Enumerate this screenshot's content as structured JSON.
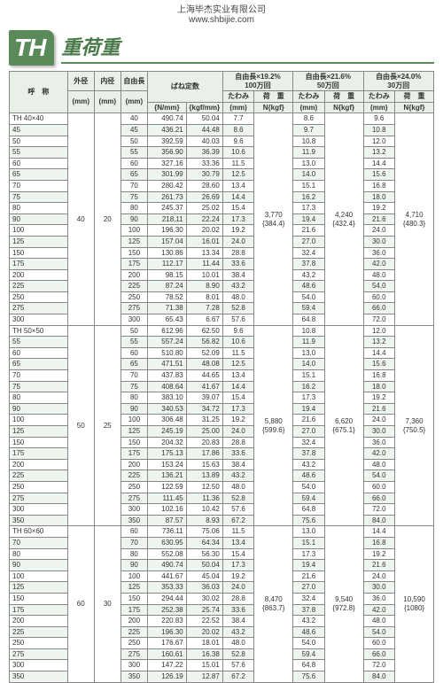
{
  "header": {
    "company": "上海毕杰实业有限公司",
    "url": "www.shbijie.com"
  },
  "title": {
    "logo": "TH",
    "text": "重荷重"
  },
  "columns": {
    "name": "呼　称",
    "od": "外径",
    "id": "内径",
    "len": "自由長",
    "mm": "(mm)",
    "spring": "ばね定数",
    "sc1": "{N/mm}",
    "sc2": "{kgf/mm}",
    "g1": "自由長×19.2%<br>100万回",
    "g2": "自由長×21.6%<br>50万回",
    "g3": "自由長×24.0%<br>30万回",
    "deflection": "たわみ",
    "load": "荷　重",
    "defl_u": "(mm)",
    "load_u": "N{kgf}"
  },
  "zebra_color": "#eef4ee",
  "groups": [
    {
      "name": "TH 40×40",
      "od": "40",
      "id": "20",
      "load1": "3,770<br>{384.4}",
      "load2": "4,240<br>{432.4}",
      "load3": "4,710<br>{480.3}",
      "rows": [
        [
          "40",
          "40",
          "490.74",
          "50.04",
          "7.7",
          "8.6",
          "9.6"
        ],
        [
          "45",
          "45",
          "436.21",
          "44.48",
          "8.6",
          "9.7",
          "10.8"
        ],
        [
          "50",
          "50",
          "392.59",
          "40.03",
          "9.6",
          "10.8",
          "12.0"
        ],
        [
          "55",
          "55",
          "356.90",
          "36.39",
          "10.6",
          "11.9",
          "13.2"
        ],
        [
          "60",
          "60",
          "327.16",
          "33.36",
          "11.5",
          "13.0",
          "14.4"
        ],
        [
          "65",
          "65",
          "301.99",
          "30.79",
          "12.5",
          "14.0",
          "15.6"
        ],
        [
          "70",
          "70",
          "280.42",
          "28.60",
          "13.4",
          "15.1",
          "16.8"
        ],
        [
          "75",
          "75",
          "261.73",
          "26.69",
          "14.4",
          "16.2",
          "18.0"
        ],
        [
          "80",
          "80",
          "245.37",
          "25.02",
          "15.4",
          "17.3",
          "19.2"
        ],
        [
          "90",
          "90",
          "218.11",
          "22.24",
          "17.3",
          "19.4",
          "21.6"
        ],
        [
          "100",
          "100",
          "196.30",
          "20.02",
          "19.2",
          "21.6",
          "24.0"
        ],
        [
          "125",
          "125",
          "157.04",
          "16.01",
          "24.0",
          "27.0",
          "30.0"
        ],
        [
          "150",
          "150",
          "130.86",
          "13.34",
          "28.8",
          "32.4",
          "36.0"
        ],
        [
          "175",
          "175",
          "112.17",
          "11.44",
          "33.6",
          "37.8",
          "42.0"
        ],
        [
          "200",
          "200",
          "98.15",
          "10.01",
          "38.4",
          "43.2",
          "48.0"
        ],
        [
          "225",
          "225",
          "87.24",
          "8.90",
          "43.2",
          "48.6",
          "54.0"
        ],
        [
          "250",
          "250",
          "78.52",
          "8.01",
          "48.0",
          "54.0",
          "60.0"
        ],
        [
          "275",
          "275",
          "71.38",
          "7.28",
          "52.8",
          "59.4",
          "66.0"
        ],
        [
          "300",
          "300",
          "65.43",
          "6.67",
          "57.6",
          "64.8",
          "72.0"
        ]
      ]
    },
    {
      "name": "TH 50×50",
      "od": "50",
      "id": "25",
      "load1": "5,880<br>{599.6}",
      "load2": "6,620<br>{675.1}",
      "load3": "7,360<br>{750.5}",
      "rows": [
        [
          "50",
          "50",
          "612.96",
          "62.50",
          "9.6",
          "10.8",
          "12.0"
        ],
        [
          "55",
          "55",
          "557.24",
          "56.82",
          "10.6",
          "11.9",
          "13.2"
        ],
        [
          "60",
          "60",
          "510.80",
          "52.09",
          "11.5",
          "13.0",
          "14.4"
        ],
        [
          "65",
          "65",
          "471.51",
          "48.08",
          "12.5",
          "14.0",
          "15.6"
        ],
        [
          "70",
          "70",
          "437.83",
          "44.65",
          "13.4",
          "15.1",
          "16.8"
        ],
        [
          "75",
          "75",
          "408.64",
          "41.67",
          "14.4",
          "16.2",
          "18.0"
        ],
        [
          "80",
          "80",
          "383.10",
          "39.07",
          "15.4",
          "17.3",
          "19.2"
        ],
        [
          "90",
          "90",
          "340.53",
          "34.72",
          "17.3",
          "19.4",
          "21.6"
        ],
        [
          "100",
          "100",
          "306.48",
          "31.25",
          "19.2",
          "21.6",
          "24.0"
        ],
        [
          "125",
          "125",
          "245.19",
          "25.00",
          "24.0",
          "27.0",
          "30.0"
        ],
        [
          "150",
          "150",
          "204.32",
          "20.83",
          "28.8",
          "32.4",
          "36.0"
        ],
        [
          "175",
          "175",
          "175.13",
          "17.86",
          "33.6",
          "37.8",
          "42.0"
        ],
        [
          "200",
          "200",
          "153.24",
          "15.63",
          "38.4",
          "43.2",
          "48.0"
        ],
        [
          "225",
          "225",
          "136.21",
          "13.89",
          "43.2",
          "48.6",
          "54.0"
        ],
        [
          "250",
          "250",
          "122.59",
          "12.50",
          "48.0",
          "54.0",
          "60.0"
        ],
        [
          "275",
          "275",
          "111.45",
          "11.36",
          "52.8",
          "59.4",
          "66.0"
        ],
        [
          "300",
          "300",
          "102.16",
          "10.42",
          "57.6",
          "64.8",
          "72.0"
        ],
        [
          "350",
          "350",
          "87.57",
          "8.93",
          "67.2",
          "75.6",
          "84.0"
        ]
      ]
    },
    {
      "name": "TH 60×60",
      "od": "60",
      "id": "30",
      "load1": "8,470<br>{863.7}",
      "load2": "9,540<br>{972.8}",
      "load3": "10,590<br>{1080}",
      "rows": [
        [
          "60",
          "60",
          "736.11",
          "75.06",
          "11.5",
          "13.0",
          "14.4"
        ],
        [
          "70",
          "70",
          "630.95",
          "64.34",
          "13.4",
          "15.1",
          "16.8"
        ],
        [
          "80",
          "80",
          "552.08",
          "56.30",
          "15.4",
          "17.3",
          "19.2"
        ],
        [
          "90",
          "90",
          "490.74",
          "50.04",
          "17.3",
          "19.4",
          "21.6"
        ],
        [
          "100",
          "100",
          "441.67",
          "45.04",
          "19.2",
          "21.6",
          "24.0"
        ],
        [
          "125",
          "125",
          "353.33",
          "36.03",
          "24.0",
          "27.0",
          "30.0"
        ],
        [
          "150",
          "150",
          "294.44",
          "30.02",
          "28.8",
          "32.4",
          "36.0"
        ],
        [
          "175",
          "175",
          "252.38",
          "25.74",
          "33.6",
          "37.8",
          "42.0"
        ],
        [
          "200",
          "200",
          "220.83",
          "22.52",
          "38.4",
          "43.2",
          "48.0"
        ],
        [
          "225",
          "225",
          "196.30",
          "20.02",
          "43.2",
          "48.6",
          "54.0"
        ],
        [
          "250",
          "250",
          "176.67",
          "18.01",
          "48.0",
          "54.0",
          "60.0"
        ],
        [
          "275",
          "275",
          "160.61",
          "16.38",
          "52.8",
          "59.4",
          "66.0"
        ],
        [
          "300",
          "300",
          "147.22",
          "15.01",
          "57.6",
          "64.8",
          "72.0"
        ],
        [
          "350",
          "350",
          "126.19",
          "12.87",
          "67.2",
          "75.6",
          "84.0"
        ]
      ]
    }
  ]
}
